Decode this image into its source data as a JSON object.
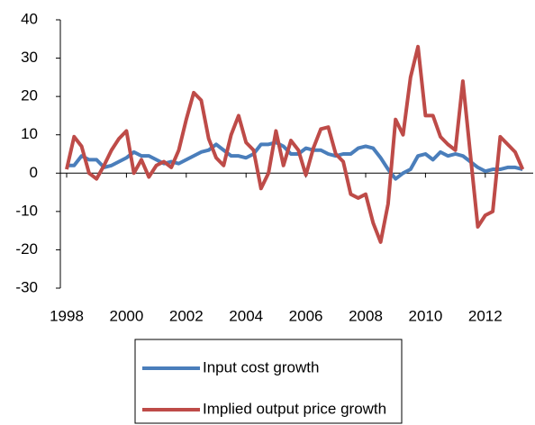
{
  "chart_data": {
    "type": "line",
    "categories": [
      "1998",
      null,
      null,
      null,
      null,
      null,
      null,
      null,
      "2000",
      null,
      null,
      null,
      null,
      null,
      null,
      null,
      "2002",
      null,
      null,
      null,
      null,
      null,
      null,
      null,
      "2004",
      null,
      null,
      null,
      null,
      null,
      null,
      null,
      "2006",
      null,
      null,
      null,
      null,
      null,
      null,
      null,
      "2008",
      null,
      null,
      null,
      null,
      null,
      null,
      null,
      "2010",
      null,
      null,
      null,
      null,
      null,
      null,
      null,
      "2012",
      null,
      null,
      null,
      null,
      null
    ],
    "series": [
      {
        "name": "Input cost growth",
        "color": "#4a7ebb",
        "values": [
          2,
          2,
          4.5,
          3.5,
          3.5,
          1.5,
          2,
          3,
          4,
          5.5,
          4.5,
          4.5,
          3.5,
          2.5,
          3,
          2.5,
          3.5,
          4.5,
          5.5,
          6,
          7.5,
          6,
          4.5,
          4.5,
          4,
          5,
          7.5,
          7.5,
          8,
          7,
          5,
          5,
          6.5,
          6,
          6,
          5,
          4.5,
          5,
          5,
          6.5,
          7,
          6.5,
          4,
          1,
          -1.5,
          0,
          1,
          4.5,
          5,
          3.5,
          5.5,
          4.5,
          5,
          4.5,
          3,
          1.5,
          0.5,
          1,
          1,
          1.5,
          1.5,
          1
        ]
      },
      {
        "name": "Implied output price growth",
        "color": "#be4b48",
        "values": [
          1,
          9.5,
          7,
          0,
          -1.5,
          2,
          6,
          9,
          11,
          0,
          3.5,
          -1,
          2,
          3,
          1.5,
          6,
          14,
          21,
          19,
          9,
          4,
          2,
          10,
          15,
          8,
          6,
          -4,
          0,
          11,
          2,
          8.5,
          6,
          -0.5,
          6.5,
          11.5,
          12,
          5,
          3,
          -5.5,
          -6.5,
          -5.5,
          -13,
          -18,
          -8,
          14,
          10,
          25,
          33,
          15,
          15,
          9.5,
          7.5,
          6,
          24,
          5,
          -14,
          -11,
          -10,
          9.5,
          7.5,
          5.5,
          1
        ]
      }
    ],
    "ylim": [
      -30,
      40
    ],
    "yticks": [
      -30,
      -20,
      -10,
      0,
      10,
      20,
      30,
      40
    ]
  }
}
